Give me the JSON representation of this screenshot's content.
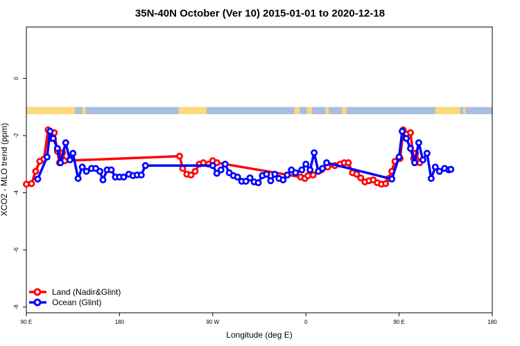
{
  "chart_data": {
    "type": "line",
    "title": "35N-40N October (Ver 10)   2015-01-01 to 2020-12-18",
    "xlabel": "Longitude (deg E)",
    "ylabel": "XCO2 - MLO trend (ppm)",
    "xlim": [
      90,
      540
    ],
    "ylim": [
      -8.2,
      1.8
    ],
    "x_ticks": [
      {
        "value": 90,
        "label": "90 E"
      },
      {
        "value": 180,
        "label": "180"
      },
      {
        "value": 270,
        "label": "90 W"
      },
      {
        "value": 360,
        "label": "0"
      },
      {
        "value": 450,
        "label": "90 E"
      },
      {
        "value": 540,
        "label": "180"
      }
    ],
    "y_ticks": [
      {
        "value": 0,
        "label": "0"
      },
      {
        "value": -2,
        "label": "-2"
      },
      {
        "value": -4,
        "label": "-4"
      },
      {
        "value": -6,
        "label": "-6"
      },
      {
        "value": -8,
        "label": "-8"
      }
    ],
    "legend": {
      "position": "bottom-left",
      "entries": [
        {
          "label": "Land (Nadir&Glint)",
          "color": "#ff0000"
        },
        {
          "label": "Ocean (Glint)",
          "color": "#0000ff"
        }
      ]
    },
    "land_mask_strip": {
      "y_range": [
        -1.25,
        -1.0
      ],
      "land_color": "#ffd97a",
      "ocean_color": "#a7bedf",
      "land_lon_ranges": [
        [
          90,
          137
        ],
        [
          144,
          147
        ],
        [
          237,
          264
        ],
        [
          349,
          354
        ],
        [
          361,
          366
        ],
        [
          379,
          382
        ],
        [
          395,
          399
        ],
        [
          485,
          509
        ],
        [
          512,
          514
        ]
      ]
    },
    "series": [
      {
        "name": "Land (Nadir&Glint)",
        "color": "#ff0000",
        "points": [
          [
            90,
            -3.7
          ],
          [
            95,
            -3.68
          ],
          [
            99,
            -3.25
          ],
          [
            103,
            -2.9
          ],
          [
            107,
            -2.82
          ],
          [
            111,
            -1.8
          ],
          [
            114,
            -2.1
          ],
          [
            117,
            -1.9
          ],
          [
            120,
            -2.55
          ],
          [
            122,
            -2.95
          ],
          [
            125,
            -2.6
          ],
          [
            127,
            -2.88
          ],
          [
            238,
            -2.72
          ],
          [
            241,
            -3.15
          ],
          [
            245,
            -3.35
          ],
          [
            249,
            -3.38
          ],
          [
            253,
            -3.25
          ],
          [
            257,
            -3.0
          ],
          [
            261,
            -2.95
          ],
          [
            266,
            -3.0
          ],
          [
            270,
            -2.88
          ],
          [
            274,
            -2.95
          ],
          [
            355,
            -3.45
          ],
          [
            359,
            -3.5
          ],
          [
            362,
            -3.4
          ],
          [
            367,
            -3.38
          ],
          [
            375,
            -3.2
          ],
          [
            381,
            -3.1
          ],
          [
            388,
            -3.05
          ],
          [
            393,
            -3.0
          ],
          [
            397,
            -2.95
          ],
          [
            401,
            -2.95
          ],
          [
            405,
            -3.3
          ],
          [
            409,
            -3.35
          ],
          [
            413,
            -3.48
          ],
          [
            417,
            -3.62
          ],
          [
            421,
            -3.58
          ],
          [
            425,
            -3.55
          ],
          [
            429,
            -3.65
          ],
          [
            433,
            -3.7
          ],
          [
            437,
            -3.68
          ],
          [
            440,
            -3.5
          ],
          [
            443,
            -3.25
          ],
          [
            446,
            -2.9
          ],
          [
            451,
            -2.8
          ],
          [
            454,
            -1.8
          ],
          [
            457,
            -1.95
          ],
          [
            461,
            -1.9
          ],
          [
            464,
            -2.8
          ],
          [
            466,
            -2.62
          ],
          [
            470,
            -2.95
          ]
        ]
      },
      {
        "name": "Ocean (Glint)",
        "color": "#0000ff",
        "points": [
          [
            101,
            -3.52
          ],
          [
            110,
            -2.75
          ],
          [
            113,
            -1.85
          ],
          [
            116,
            -2.1
          ],
          [
            120,
            -2.45
          ],
          [
            123,
            -2.95
          ],
          [
            128,
            -2.25
          ],
          [
            132,
            -2.85
          ],
          [
            135,
            -2.62
          ],
          [
            140,
            -3.5
          ],
          [
            144,
            -3.1
          ],
          [
            148,
            -3.25
          ],
          [
            153,
            -3.15
          ],
          [
            157,
            -3.15
          ],
          [
            161,
            -3.25
          ],
          [
            164,
            -3.55
          ],
          [
            168,
            -3.2
          ],
          [
            172,
            -3.2
          ],
          [
            176,
            -3.45
          ],
          [
            180,
            -3.45
          ],
          [
            184,
            -3.45
          ],
          [
            189,
            -3.35
          ],
          [
            193,
            -3.4
          ],
          [
            197,
            -3.38
          ],
          [
            201,
            -3.38
          ],
          [
            205,
            -3.05
          ],
          [
            270,
            -3.05
          ],
          [
            274,
            -3.32
          ],
          [
            278,
            -3.2
          ],
          [
            282,
            -3.0
          ],
          [
            286,
            -3.3
          ],
          [
            290,
            -3.4
          ],
          [
            294,
            -3.45
          ],
          [
            298,
            -3.6
          ],
          [
            302,
            -3.6
          ],
          [
            306,
            -3.48
          ],
          [
            310,
            -3.62
          ],
          [
            314,
            -3.65
          ],
          [
            318,
            -3.4
          ],
          [
            322,
            -3.35
          ],
          [
            326,
            -3.58
          ],
          [
            330,
            -3.35
          ],
          [
            334,
            -3.5
          ],
          [
            338,
            -3.55
          ],
          [
            342,
            -3.38
          ],
          [
            346,
            -3.2
          ],
          [
            350,
            -3.3
          ],
          [
            356,
            -3.2
          ],
          [
            360,
            -3.0
          ],
          [
            364,
            -3.2
          ],
          [
            368,
            -2.6
          ],
          [
            372,
            -3.25
          ],
          [
            376,
            -3.15
          ],
          [
            380,
            -2.95
          ],
          [
            443,
            -3.52
          ],
          [
            450,
            -2.75
          ],
          [
            453,
            -1.85
          ],
          [
            457,
            -2.1
          ],
          [
            461,
            -2.45
          ],
          [
            465,
            -2.95
          ],
          [
            469,
            -2.25
          ],
          [
            473,
            -2.85
          ],
          [
            477,
            -2.62
          ],
          [
            481,
            -3.5
          ],
          [
            485,
            -3.1
          ],
          [
            489,
            -3.25
          ],
          [
            494,
            -3.15
          ],
          [
            498,
            -3.2
          ],
          [
            500,
            -3.18
          ]
        ]
      }
    ]
  }
}
